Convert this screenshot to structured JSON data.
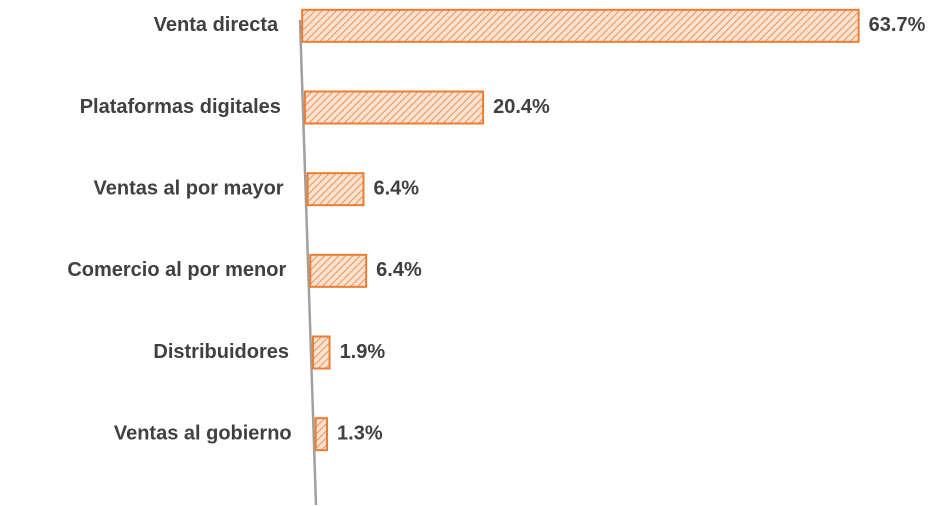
{
  "chart_data": {
    "type": "bar",
    "orientation": "horizontal",
    "categories": [
      "Venta directa",
      "Plataformas digitales",
      "Ventas al por mayor",
      "Comercio al por menor",
      "Distribuidores",
      "Ventas al gobierno"
    ],
    "values": [
      63.7,
      20.4,
      6.4,
      6.4,
      1.9,
      1.3
    ],
    "value_labels": [
      "63.7%",
      "20.4%",
      "6.4%",
      "6.4%",
      "1.9%",
      "1.3%"
    ],
    "color": "#ed7d31"
  }
}
